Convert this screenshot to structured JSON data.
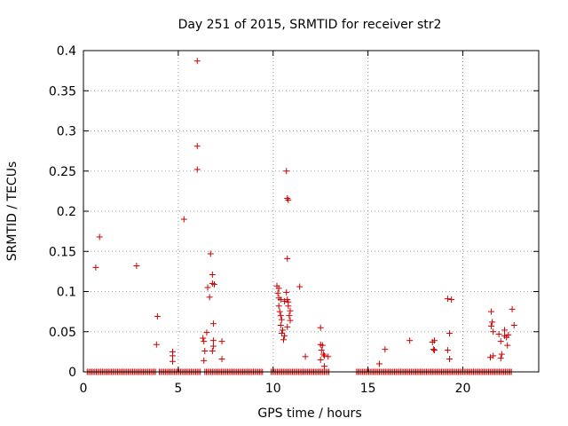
{
  "chart_data": {
    "type": "scatter",
    "title": "Day 251 of 2015, SRMTID for receiver str2",
    "xlabel": "GPS time / hours",
    "ylabel": "SRMTID / TECUs",
    "xlim": [
      0,
      24
    ],
    "ylim": [
      0,
      0.4
    ],
    "x_ticks": [
      0,
      5,
      10,
      15,
      20
    ],
    "x_tick_labels": [
      "0",
      "5",
      "10",
      "15",
      "20"
    ],
    "y_ticks": [
      0,
      0.05,
      0.1,
      0.15,
      0.2,
      0.25,
      0.3,
      0.35,
      0.4
    ],
    "y_tick_labels": [
      "0",
      "0.05",
      "0.1",
      "0.15",
      "0.2",
      "0.25",
      "0.3",
      "0.35",
      "0.4"
    ],
    "grid": true,
    "marker": "plus",
    "marker_color": "#cc0000",
    "grid_color": "#a0a0a0",
    "series": [
      {
        "name": "SRMTID",
        "points": [
          [
            0.65,
            0.13
          ],
          [
            0.85,
            0.168
          ],
          [
            2.8,
            0.132
          ],
          [
            3.9,
            0.069
          ],
          [
            3.85,
            0.034
          ],
          [
            4.7,
            0.025
          ],
          [
            4.7,
            0.02
          ],
          [
            4.7,
            0.013
          ],
          [
            5.3,
            0.19
          ],
          [
            6.0,
            0.387
          ],
          [
            6.0,
            0.281
          ],
          [
            6.0,
            0.252
          ],
          [
            6.3,
            0.042
          ],
          [
            6.35,
            0.038
          ],
          [
            6.4,
            0.026
          ],
          [
            6.35,
            0.014
          ],
          [
            6.5,
            0.049
          ],
          [
            6.55,
            0.105
          ],
          [
            6.65,
            0.093
          ],
          [
            6.7,
            0.147
          ],
          [
            6.8,
            0.121
          ],
          [
            6.8,
            0.11
          ],
          [
            6.9,
            0.109
          ],
          [
            6.85,
            0.06
          ],
          [
            6.85,
            0.039
          ],
          [
            6.85,
            0.032
          ],
          [
            6.8,
            0.026
          ],
          [
            7.3,
            0.038
          ],
          [
            7.3,
            0.016
          ],
          [
            10.2,
            0.107
          ],
          [
            10.3,
            0.104
          ],
          [
            10.25,
            0.098
          ],
          [
            10.3,
            0.092
          ],
          [
            10.4,
            0.09
          ],
          [
            10.3,
            0.082
          ],
          [
            10.35,
            0.075
          ],
          [
            10.4,
            0.07
          ],
          [
            10.45,
            0.065
          ],
          [
            10.4,
            0.058
          ],
          [
            10.5,
            0.052
          ],
          [
            10.45,
            0.048
          ],
          [
            10.6,
            0.045
          ],
          [
            10.55,
            0.04
          ],
          [
            10.6,
            0.088
          ],
          [
            10.7,
            0.099
          ],
          [
            10.75,
            0.09
          ],
          [
            10.8,
            0.087
          ],
          [
            10.8,
            0.082
          ],
          [
            10.9,
            0.076
          ],
          [
            10.85,
            0.07
          ],
          [
            10.9,
            0.064
          ],
          [
            10.75,
            0.056
          ],
          [
            10.7,
            0.25
          ],
          [
            10.75,
            0.216
          ],
          [
            10.8,
            0.214
          ],
          [
            10.75,
            0.141
          ],
          [
            11.4,
            0.106
          ],
          [
            11.7,
            0.019
          ],
          [
            12.5,
            0.055
          ],
          [
            12.5,
            0.034
          ],
          [
            12.6,
            0.033
          ],
          [
            12.55,
            0.027
          ],
          [
            12.65,
            0.022
          ],
          [
            12.5,
            0.015
          ],
          [
            12.7,
            0.02
          ],
          [
            12.9,
            0.019
          ],
          [
            12.7,
            0.007
          ],
          [
            15.6,
            0.01
          ],
          [
            15.9,
            0.028
          ],
          [
            17.2,
            0.039
          ],
          [
            18.4,
            0.037
          ],
          [
            18.5,
            0.039
          ],
          [
            18.45,
            0.028
          ],
          [
            18.5,
            0.027
          ],
          [
            19.2,
            0.091
          ],
          [
            19.4,
            0.09
          ],
          [
            19.3,
            0.048
          ],
          [
            19.2,
            0.027
          ],
          [
            19.3,
            0.016
          ],
          [
            21.5,
            0.075
          ],
          [
            21.55,
            0.062
          ],
          [
            21.5,
            0.057
          ],
          [
            21.6,
            0.05
          ],
          [
            21.45,
            0.018
          ],
          [
            21.6,
            0.02
          ],
          [
            21.9,
            0.047
          ],
          [
            22.0,
            0.038
          ],
          [
            22.05,
            0.022
          ],
          [
            22.0,
            0.017
          ],
          [
            22.2,
            0.045
          ],
          [
            22.3,
            0.043
          ],
          [
            22.35,
            0.033
          ],
          [
            22.4,
            0.046
          ],
          [
            22.6,
            0.078
          ],
          [
            22.7,
            0.058
          ],
          [
            22.2,
            0.052
          ]
        ],
        "zero_ranges": [
          [
            0.2,
            3.8
          ],
          [
            4.0,
            6.2
          ],
          [
            6.4,
            9.5
          ],
          [
            9.9,
            13.0
          ],
          [
            14.4,
            22.6
          ]
        ]
      }
    ]
  }
}
